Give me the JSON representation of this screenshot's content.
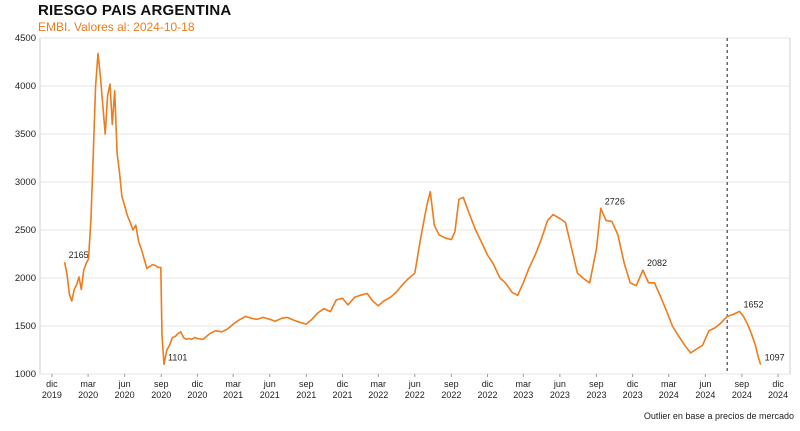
{
  "chart_data": {
    "type": "line",
    "title": "RIESGO PAIS ARGENTINA",
    "subtitle": "EMBI. Valores al: 2024-10-18",
    "footnote": "Outlier en base a precios de mercado",
    "xlabel": "",
    "ylabel": "",
    "ylim": [
      1000,
      4500
    ],
    "yticks": [
      1000,
      1500,
      2000,
      2500,
      3000,
      3500,
      4000,
      4500
    ],
    "grid": true,
    "line_color": "#f07b1a",
    "xticks": [
      {
        "date": "2019-12-01",
        "line1": "dic",
        "line2": "2019"
      },
      {
        "date": "2020-03-01",
        "line1": "mar",
        "line2": "2020"
      },
      {
        "date": "2020-06-01",
        "line1": "jun",
        "line2": "2020"
      },
      {
        "date": "2020-09-01",
        "line1": "sep",
        "line2": "2020"
      },
      {
        "date": "2020-12-01",
        "line1": "dic",
        "line2": "2020"
      },
      {
        "date": "2021-03-01",
        "line1": "mar",
        "line2": "2021"
      },
      {
        "date": "2021-06-01",
        "line1": "jun",
        "line2": "2021"
      },
      {
        "date": "2021-09-01",
        "line1": "sep",
        "line2": "2021"
      },
      {
        "date": "2021-12-01",
        "line1": "dic",
        "line2": "2021"
      },
      {
        "date": "2022-03-01",
        "line1": "mar",
        "line2": "2022"
      },
      {
        "date": "2022-06-01",
        "line1": "jun",
        "line2": "2022"
      },
      {
        "date": "2022-09-01",
        "line1": "sep",
        "line2": "2022"
      },
      {
        "date": "2022-12-01",
        "line1": "dic",
        "line2": "2022"
      },
      {
        "date": "2023-03-01",
        "line1": "mar",
        "line2": "2023"
      },
      {
        "date": "2023-06-01",
        "line1": "jun",
        "line2": "2023"
      },
      {
        "date": "2023-09-01",
        "line1": "sep",
        "line2": "2023"
      },
      {
        "date": "2023-12-01",
        "line1": "dic",
        "line2": "2023"
      },
      {
        "date": "2024-03-01",
        "line1": "mar",
        "line2": "2024"
      },
      {
        "date": "2024-06-01",
        "line1": "jun",
        "line2": "2024"
      },
      {
        "date": "2024-09-01",
        "line1": "sep",
        "line2": "2024"
      },
      {
        "date": "2024-12-01",
        "line1": "dic",
        "line2": "2024"
      }
    ],
    "vline_date": "2024-07-26",
    "annotations": [
      {
        "date": "2020-01-02",
        "value": 2165,
        "label": "2165"
      },
      {
        "date": "2020-09-08",
        "value": 1101,
        "label": "1101"
      },
      {
        "date": "2023-09-12",
        "value": 2726,
        "label": "2726"
      },
      {
        "date": "2023-12-27",
        "value": 2082,
        "label": "2082"
      },
      {
        "date": "2024-08-26",
        "value": 1652,
        "label": "1652"
      },
      {
        "date": "2024-10-18",
        "value": 1097,
        "label": "1097"
      }
    ],
    "series": [
      {
        "points": [
          [
            "2020-01-02",
            2165
          ],
          [
            "2020-01-08",
            2040
          ],
          [
            "2020-01-14",
            1830
          ],
          [
            "2020-01-20",
            1760
          ],
          [
            "2020-01-26",
            1880
          ],
          [
            "2020-02-01",
            1930
          ],
          [
            "2020-02-07",
            2010
          ],
          [
            "2020-02-13",
            1880
          ],
          [
            "2020-02-19",
            2080
          ],
          [
            "2020-02-25",
            2150
          ],
          [
            "2020-03-02",
            2200
          ],
          [
            "2020-03-08",
            2600
          ],
          [
            "2020-03-14",
            3300
          ],
          [
            "2020-03-20",
            4000
          ],
          [
            "2020-03-26",
            4340
          ],
          [
            "2020-04-01",
            4100
          ],
          [
            "2020-04-07",
            3800
          ],
          [
            "2020-04-13",
            3500
          ],
          [
            "2020-04-19",
            3900
          ],
          [
            "2020-04-25",
            4020
          ],
          [
            "2020-05-01",
            3600
          ],
          [
            "2020-05-07",
            3950
          ],
          [
            "2020-05-13",
            3300
          ],
          [
            "2020-05-19",
            3100
          ],
          [
            "2020-05-25",
            2850
          ],
          [
            "2020-06-01",
            2750
          ],
          [
            "2020-06-08",
            2650
          ],
          [
            "2020-06-15",
            2580
          ],
          [
            "2020-06-22",
            2500
          ],
          [
            "2020-06-29",
            2550
          ],
          [
            "2020-07-06",
            2380
          ],
          [
            "2020-07-13",
            2300
          ],
          [
            "2020-07-20",
            2200
          ],
          [
            "2020-07-27",
            2100
          ],
          [
            "2020-08-03",
            2120
          ],
          [
            "2020-08-10",
            2140
          ],
          [
            "2020-08-17",
            2130
          ],
          [
            "2020-08-24",
            2110
          ],
          [
            "2020-08-31",
            2110
          ],
          [
            "2020-09-03",
            1400
          ],
          [
            "2020-09-08",
            1101
          ],
          [
            "2020-09-15",
            1250
          ],
          [
            "2020-09-22",
            1300
          ],
          [
            "2020-09-29",
            1380
          ],
          [
            "2020-10-06",
            1390
          ],
          [
            "2020-10-13",
            1420
          ],
          [
            "2020-10-20",
            1440
          ],
          [
            "2020-10-27",
            1380
          ],
          [
            "2020-11-03",
            1360
          ],
          [
            "2020-11-10",
            1370
          ],
          [
            "2020-11-17",
            1360
          ],
          [
            "2020-11-24",
            1380
          ],
          [
            "2020-12-01",
            1370
          ],
          [
            "2020-12-15",
            1360
          ],
          [
            "2021-01-01",
            1420
          ],
          [
            "2021-01-15",
            1450
          ],
          [
            "2021-02-01",
            1440
          ],
          [
            "2021-02-15",
            1470
          ],
          [
            "2021-03-01",
            1520
          ],
          [
            "2021-03-15",
            1560
          ],
          [
            "2021-04-01",
            1600
          ],
          [
            "2021-04-15",
            1580
          ],
          [
            "2021-05-01",
            1570
          ],
          [
            "2021-05-15",
            1590
          ],
          [
            "2021-06-01",
            1570
          ],
          [
            "2021-06-15",
            1550
          ],
          [
            "2021-07-01",
            1580
          ],
          [
            "2021-07-15",
            1590
          ],
          [
            "2021-08-01",
            1560
          ],
          [
            "2021-08-15",
            1540
          ],
          [
            "2021-09-01",
            1520
          ],
          [
            "2021-09-15",
            1570
          ],
          [
            "2021-10-01",
            1640
          ],
          [
            "2021-10-15",
            1680
          ],
          [
            "2021-11-01",
            1650
          ],
          [
            "2021-11-15",
            1770
          ],
          [
            "2021-12-01",
            1790
          ],
          [
            "2021-12-15",
            1720
          ],
          [
            "2022-01-01",
            1800
          ],
          [
            "2022-01-15",
            1820
          ],
          [
            "2022-02-01",
            1840
          ],
          [
            "2022-02-15",
            1760
          ],
          [
            "2022-03-01",
            1710
          ],
          [
            "2022-03-15",
            1760
          ],
          [
            "2022-04-01",
            1800
          ],
          [
            "2022-04-15",
            1850
          ],
          [
            "2022-05-01",
            1930
          ],
          [
            "2022-05-15",
            1990
          ],
          [
            "2022-06-01",
            2050
          ],
          [
            "2022-06-15",
            2400
          ],
          [
            "2022-07-01",
            2750
          ],
          [
            "2022-07-10",
            2900
          ],
          [
            "2022-07-20",
            2550
          ],
          [
            "2022-08-01",
            2450
          ],
          [
            "2022-08-15",
            2420
          ],
          [
            "2022-09-01",
            2400
          ],
          [
            "2022-09-10",
            2480
          ],
          [
            "2022-09-20",
            2820
          ],
          [
            "2022-10-01",
            2840
          ],
          [
            "2022-10-15",
            2680
          ],
          [
            "2022-11-01",
            2500
          ],
          [
            "2022-11-15",
            2380
          ],
          [
            "2022-12-01",
            2240
          ],
          [
            "2022-12-15",
            2150
          ],
          [
            "2023-01-01",
            2000
          ],
          [
            "2023-01-15",
            1950
          ],
          [
            "2023-02-01",
            1850
          ],
          [
            "2023-02-15",
            1820
          ],
          [
            "2023-03-01",
            1950
          ],
          [
            "2023-03-15",
            2100
          ],
          [
            "2023-04-01",
            2250
          ],
          [
            "2023-04-15",
            2400
          ],
          [
            "2023-05-01",
            2600
          ],
          [
            "2023-05-15",
            2660
          ],
          [
            "2023-06-01",
            2620
          ],
          [
            "2023-06-15",
            2580
          ],
          [
            "2023-07-01",
            2300
          ],
          [
            "2023-07-15",
            2050
          ],
          [
            "2023-08-01",
            1990
          ],
          [
            "2023-08-15",
            1950
          ],
          [
            "2023-09-01",
            2300
          ],
          [
            "2023-09-12",
            2726
          ],
          [
            "2023-09-25",
            2600
          ],
          [
            "2023-10-10",
            2590
          ],
          [
            "2023-10-25",
            2450
          ],
          [
            "2023-11-10",
            2150
          ],
          [
            "2023-11-25",
            1950
          ],
          [
            "2023-12-10",
            1920
          ],
          [
            "2023-12-27",
            2082
          ],
          [
            "2024-01-10",
            1950
          ],
          [
            "2024-01-25",
            1950
          ],
          [
            "2024-02-10",
            1800
          ],
          [
            "2024-02-25",
            1650
          ],
          [
            "2024-03-10",
            1500
          ],
          [
            "2024-03-25",
            1400
          ],
          [
            "2024-04-10",
            1300
          ],
          [
            "2024-04-25",
            1220
          ],
          [
            "2024-05-10",
            1260
          ],
          [
            "2024-05-25",
            1300
          ],
          [
            "2024-06-10",
            1450
          ],
          [
            "2024-06-25",
            1480
          ],
          [
            "2024-07-10",
            1530
          ],
          [
            "2024-07-26",
            1600
          ],
          [
            "2024-08-10",
            1620
          ],
          [
            "2024-08-26",
            1652
          ],
          [
            "2024-09-05",
            1600
          ],
          [
            "2024-09-15",
            1520
          ],
          [
            "2024-09-25",
            1420
          ],
          [
            "2024-10-05",
            1300
          ],
          [
            "2024-10-12",
            1180
          ],
          [
            "2024-10-18",
            1097
          ]
        ]
      }
    ]
  }
}
